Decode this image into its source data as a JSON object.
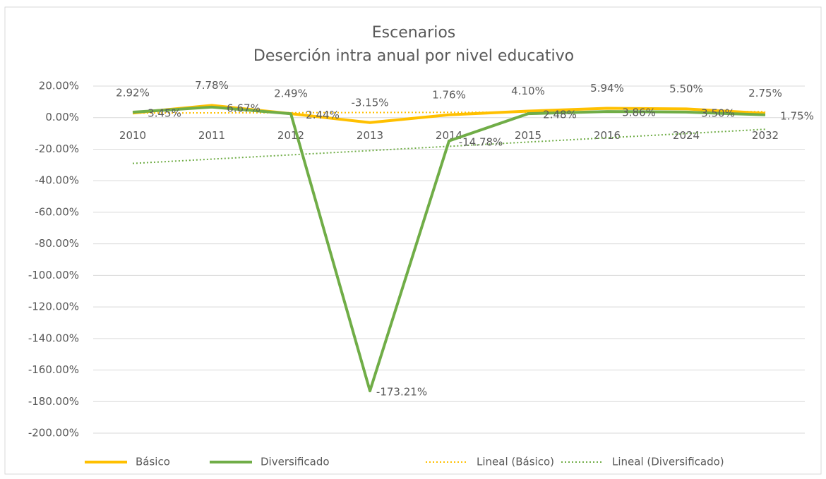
{
  "chart_data": {
    "type": "line",
    "title": "Escenarios",
    "subtitle": "Deserción intra anual por nivel educativo",
    "categories": [
      "2010",
      "2011",
      "2012",
      "2013",
      "2014",
      "2015",
      "2016",
      "2024",
      "2032"
    ],
    "series": [
      {
        "name": "Básico",
        "color": "#ffc000",
        "style": "solid",
        "values": [
          2.92,
          7.78,
          2.49,
          -3.15,
          1.76,
          4.1,
          5.94,
          5.5,
          2.75
        ],
        "value_labels": [
          "2.92%",
          "7.78%",
          "2.49%",
          "-3.15%",
          "1.76%",
          "4.10%",
          "5.94%",
          "5.50%",
          "2.75%"
        ]
      },
      {
        "name": "Diversificado",
        "color": "#70ad47",
        "style": "solid",
        "values": [
          3.45,
          6.67,
          2.44,
          -173.21,
          -14.78,
          2.48,
          3.86,
          3.5,
          1.75
        ],
        "value_labels": [
          "3.45%",
          "6.67%",
          "2.44%",
          "-173.21%",
          "-14.78%",
          "2.48%",
          "3.86%",
          "3.50%",
          "1.75%"
        ]
      },
      {
        "name": "Lineal (Básico)",
        "color": "#ffc000",
        "style": "dotted",
        "values": [
          2.9,
          3.01,
          3.12,
          3.23,
          3.34,
          3.45,
          3.56,
          3.68,
          3.79
        ]
      },
      {
        "name": "Lineal (Diversificado)",
        "color": "#70ad47",
        "style": "dotted",
        "values": [
          -29.02,
          -26.31,
          -23.61,
          -20.91,
          -18.2,
          -15.5,
          -12.79,
          -10.09,
          -7.39
        ]
      }
    ],
    "ylim": [
      -200,
      20
    ],
    "yticks": [
      {
        "value": 20,
        "label": "20.00%"
      },
      {
        "value": 0,
        "label": "0.00%"
      },
      {
        "value": -20,
        "label": "-20.00%"
      },
      {
        "value": -40,
        "label": "-40.00%"
      },
      {
        "value": -60,
        "label": "-60.00%"
      },
      {
        "value": -80,
        "label": "-80.00%"
      },
      {
        "value": -100,
        "label": "-100.00%"
      },
      {
        "value": -120,
        "label": "-120.00%"
      },
      {
        "value": -140,
        "label": "-140.00%"
      },
      {
        "value": -160,
        "label": "-160.00%"
      },
      {
        "value": -180,
        "label": "-180.00%"
      },
      {
        "value": -200,
        "label": "-200.00%"
      }
    ],
    "grid": true,
    "legend": "bottom"
  }
}
